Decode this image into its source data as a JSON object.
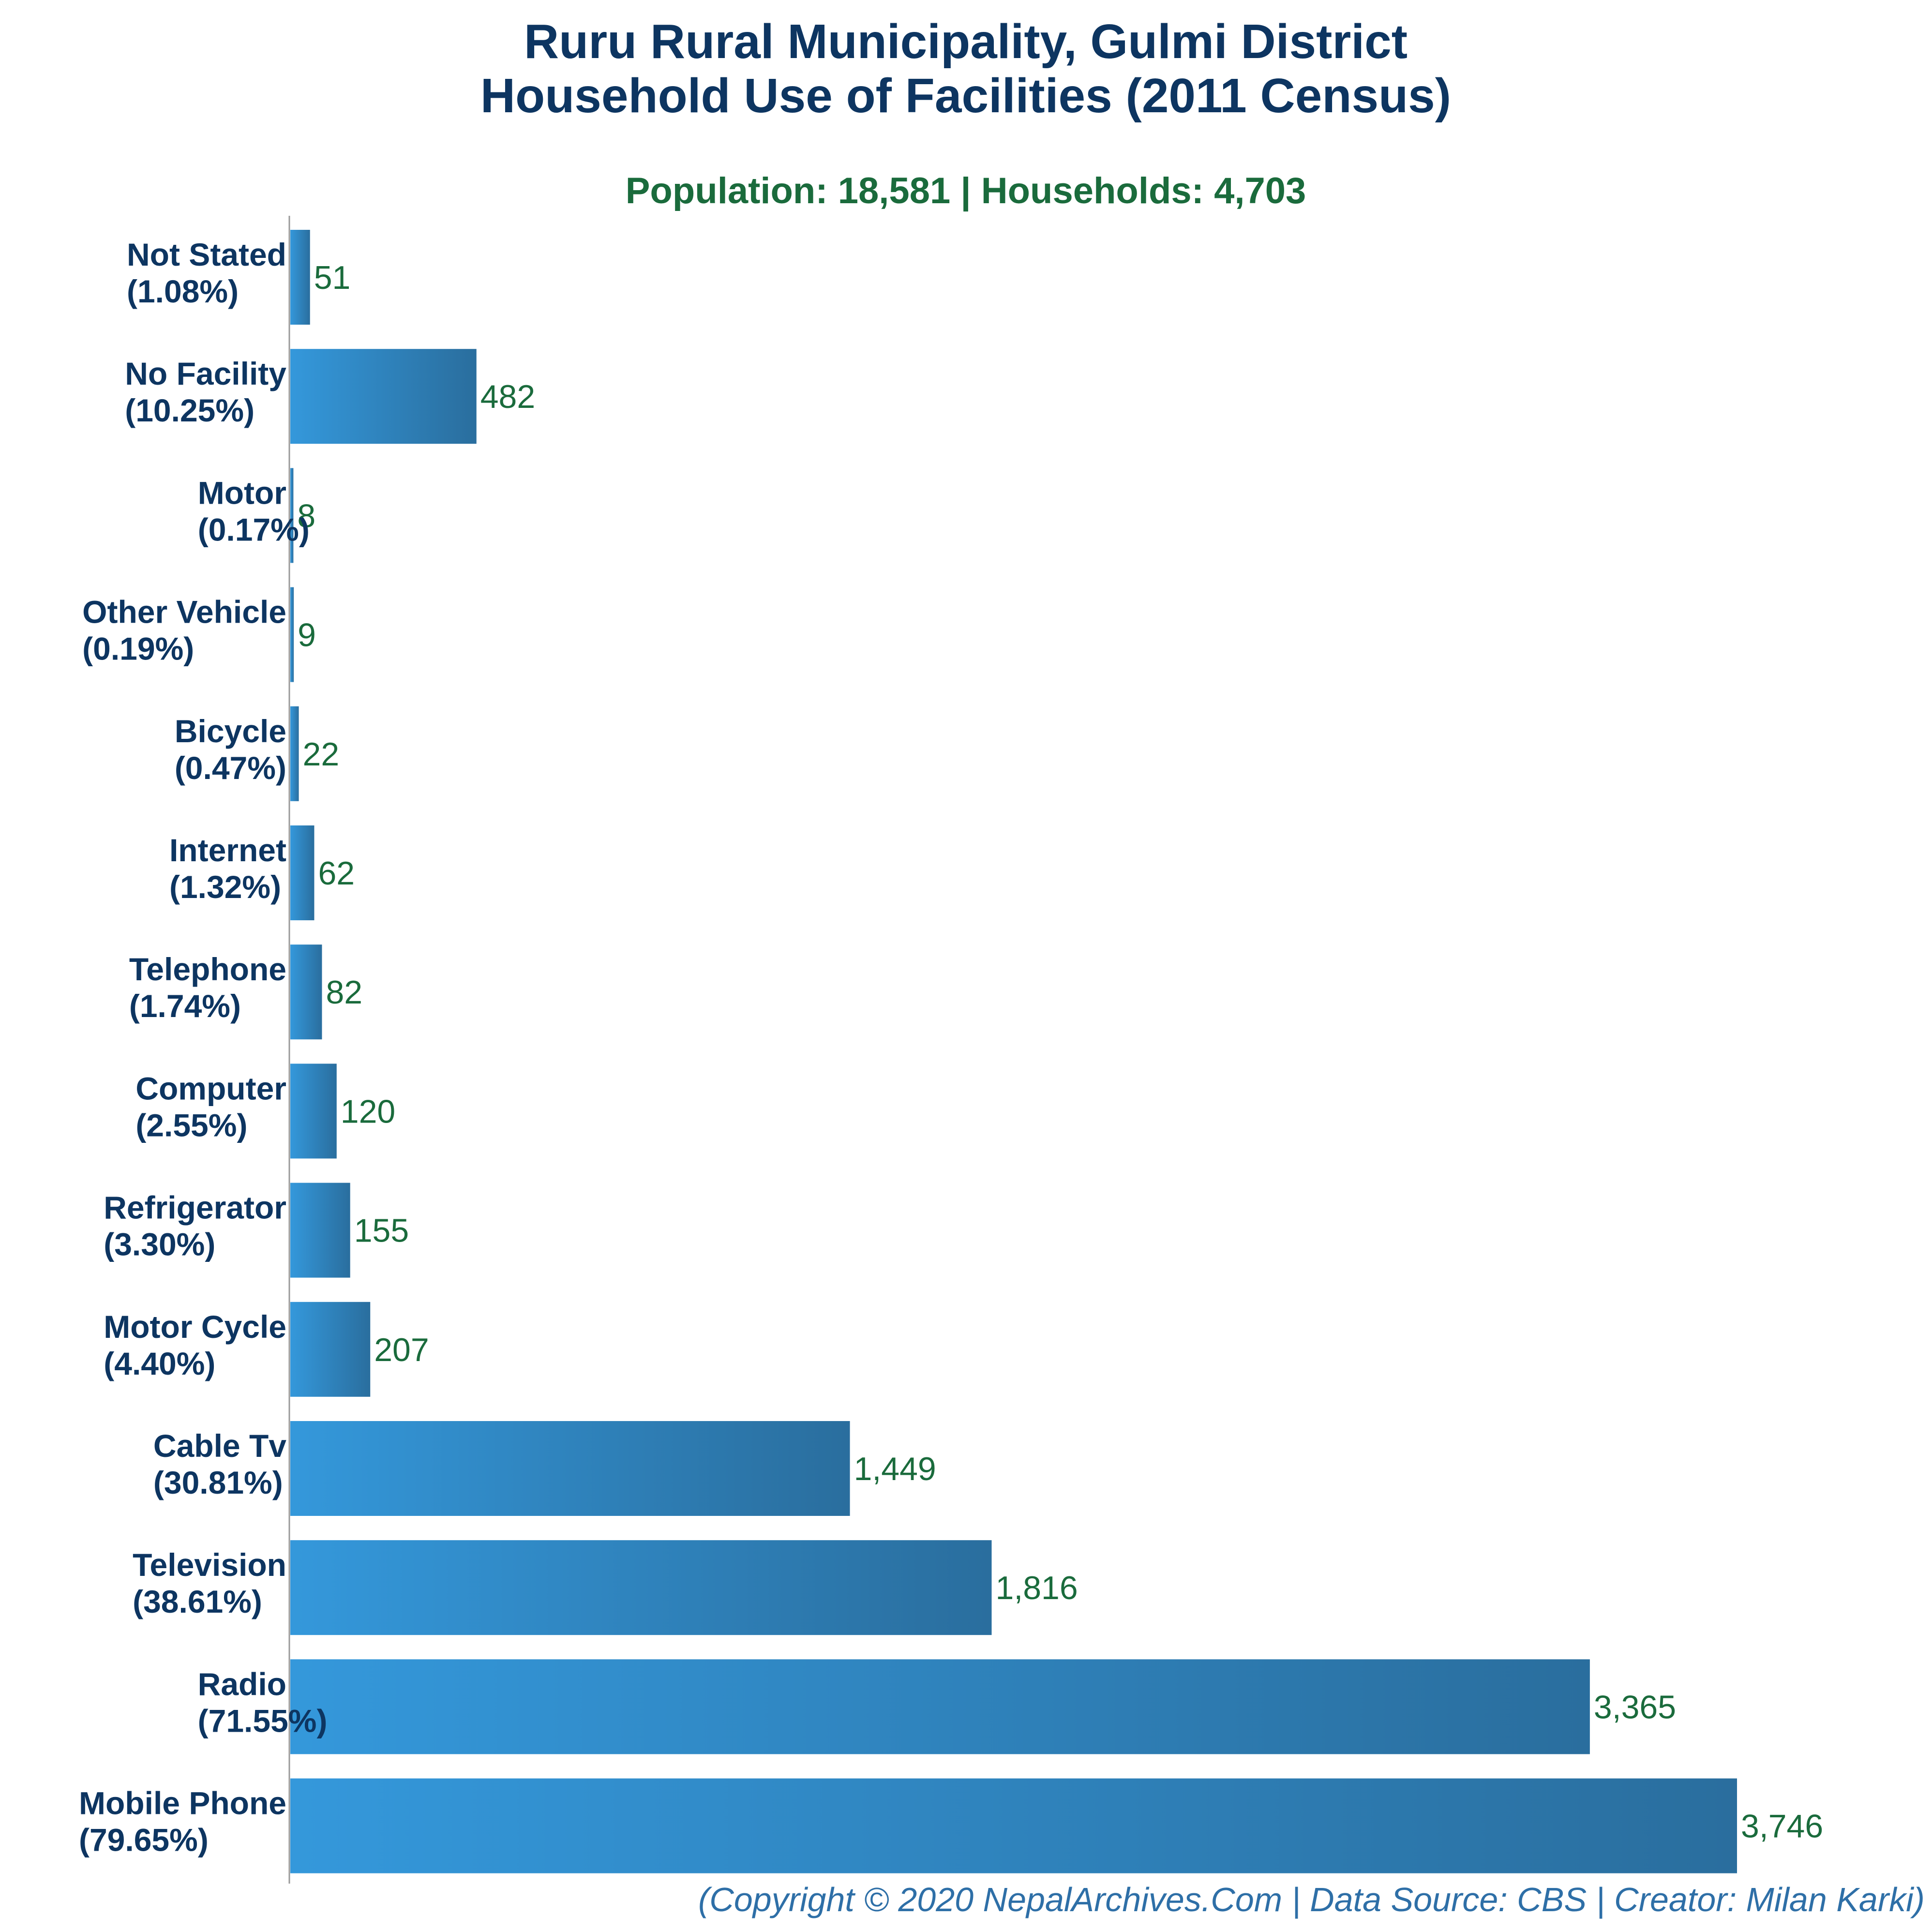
{
  "chart_data": {
    "type": "bar",
    "orientation": "horizontal",
    "title_lines": [
      "Ruru Rural Municipality, Gulmi District",
      "Household Use of Facilities (2011 Census)"
    ],
    "subtitle": "Population: 18,581 | Households: 4,703",
    "footer": "(Copyright © 2020 NepalArchives.Com | Data Source: CBS | Creator: Milan Karki)",
    "categories": [
      {
        "name": "Not Stated",
        "pct": "(1.08%)",
        "value": 51,
        "value_label": "51"
      },
      {
        "name": "No Facility",
        "pct": "(10.25%)",
        "value": 482,
        "value_label": "482"
      },
      {
        "name": "Motor",
        "pct": "(0.17%)",
        "value": 8,
        "value_label": "8"
      },
      {
        "name": "Other Vehicle",
        "pct": "(0.19%)",
        "value": 9,
        "value_label": "9"
      },
      {
        "name": "Bicycle",
        "pct": "(0.47%)",
        "value": 22,
        "value_label": "22"
      },
      {
        "name": "Internet",
        "pct": "(1.32%)",
        "value": 62,
        "value_label": "62"
      },
      {
        "name": "Telephone",
        "pct": "(1.74%)",
        "value": 82,
        "value_label": "82"
      },
      {
        "name": "Computer",
        "pct": "(2.55%)",
        "value": 120,
        "value_label": "120"
      },
      {
        "name": "Refrigerator",
        "pct": "(3.30%)",
        "value": 155,
        "value_label": "155"
      },
      {
        "name": "Motor Cycle",
        "pct": "(4.40%)",
        "value": 207,
        "value_label": "207"
      },
      {
        "name": "Cable Tv",
        "pct": "(30.81%)",
        "value": 1449,
        "value_label": "1,449"
      },
      {
        "name": "Television",
        "pct": "(38.61%)",
        "value": 1816,
        "value_label": "1,816"
      },
      {
        "name": "Radio",
        "pct": "(71.55%)",
        "value": 3365,
        "value_label": "3,365"
      },
      {
        "name": "Mobile Phone",
        "pct": "(79.65%)",
        "value": 3746,
        "value_label": "3,746"
      }
    ],
    "xlim": [
      0,
      3746
    ],
    "grid": false,
    "colors": {
      "bar_light": "#3498db",
      "bar_dark": "#2a6e9e",
      "title": "#0d3561",
      "subtitle": "#1a6b3c",
      "value_label": "#1a6b3c",
      "footer": "#2e6fa7",
      "axis": "#999999"
    }
  }
}
